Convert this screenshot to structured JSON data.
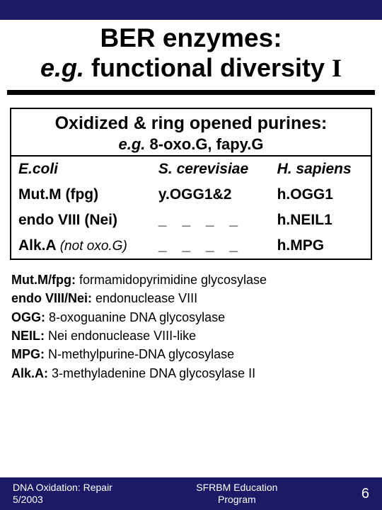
{
  "colors": {
    "band": "#1a1a66",
    "background": "#ffffff",
    "text": "#000000",
    "footer_text": "#ffffff",
    "border": "#000000"
  },
  "title": {
    "line1": "BER enzymes:",
    "line2_eg": "e.g.",
    "line2_rest": " functional diversity ",
    "line2_roman": "I"
  },
  "table": {
    "heading": "Oxidized & ring opened purines:",
    "sub_eg": "e.g.",
    "sub_rest": " 8-oxo.G, fapy.G",
    "columns": [
      "E.coli",
      "S. cerevisiae",
      "H. sapiens"
    ],
    "rows": [
      {
        "c0": "Mut.M (fpg)",
        "c1": "y.OGG1&2",
        "c2": "h.OGG1"
      },
      {
        "c0": "endo VIII (Nei)",
        "c1": "_ _ _ _",
        "c2": "h.NEIL1"
      },
      {
        "c0_main": "Alk.A ",
        "c0_note": "(not oxo.G)",
        "c1": "_ _ _ _",
        "c2": "h.MPG"
      }
    ]
  },
  "legend": {
    "l1_b": "Mut.M/fpg:",
    "l1_t": " formamidopyrimidine glycosylase",
    "l2_b": "endo VIII/Nei:",
    "l2_t": " endonuclease VIII",
    "l3_b": "OGG:",
    "l3_t": " 8-oxoguanine DNA glycosylase",
    "l4_b": "NEIL:",
    "l4_t": " Nei endonuclease VIII-like",
    "l5_b": "MPG:",
    "l5_t": " N-methylpurine-DNA glycosylase",
    "l6_b": "Alk.A:",
    "l6_t": " 3-methyladenine DNA glycosylase II"
  },
  "footer": {
    "left_line1": "DNA Oxidation: Repair",
    "left_line2": "5/2003",
    "center_line1": "SFRBM Education",
    "center_line2": "Program",
    "page": "6"
  }
}
